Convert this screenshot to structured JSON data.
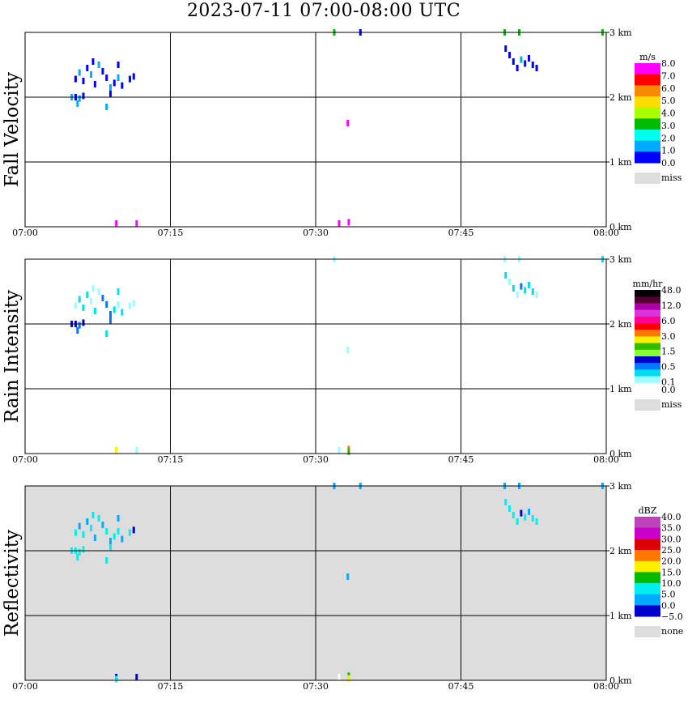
{
  "title": "2023-07-11   07:00-08:00 UTC",
  "chart_data": [
    {
      "type": "heatmap",
      "ylabel": "Fall Velocity",
      "x_ticks": [
        "07:00",
        "07:15",
        "07:30",
        "07:45",
        "08:00"
      ],
      "x_range": [
        0,
        60
      ],
      "x_unit": "minutes after 07:00 UTC",
      "y_ticks": [
        "0 km",
        "1 km",
        "2 km",
        "3 km"
      ],
      "y_range_km": [
        0,
        3.0
      ],
      "legend": {
        "unit": "m/s",
        "labels": [
          "8.0",
          "7.0",
          "6.0",
          "5.0",
          "4.0",
          "3.0",
          "2.0",
          "1.0",
          "0.0"
        ],
        "colors": [
          "#ff00ff",
          "#ff0000",
          "#ff8800",
          "#ffdd00",
          "#aaff00",
          "#00bb00",
          "#00ffee",
          "#00aaff",
          "#0000ff"
        ],
        "missing_label": "miss",
        "missing_color": "#dddddd"
      },
      "background": "#ffffff",
      "cells": [
        {
          "t": 5.2,
          "h": 2.28,
          "c": "#0000ff"
        },
        {
          "t": 5.6,
          "h": 2.38,
          "c": "#00aaff"
        },
        {
          "t": 6.0,
          "h": 2.25,
          "c": "#0000ff"
        },
        {
          "t": 6.4,
          "h": 2.45,
          "c": "#0000ff"
        },
        {
          "t": 6.8,
          "h": 2.35,
          "c": "#00aaff"
        },
        {
          "t": 7.2,
          "h": 2.2,
          "c": "#0000ff"
        },
        {
          "t": 7.6,
          "h": 2.5,
          "c": "#00aaff"
        },
        {
          "t": 8.0,
          "h": 2.4,
          "c": "#0000ff"
        },
        {
          "t": 8.4,
          "h": 2.3,
          "c": "#0000ff"
        },
        {
          "t": 8.8,
          "h": 2.15,
          "c": "#00aaff"
        },
        {
          "t": 9.2,
          "h": 2.22,
          "c": "#0000ff"
        },
        {
          "t": 9.6,
          "h": 2.3,
          "c": "#00aaff"
        },
        {
          "t": 10.0,
          "h": 2.18,
          "c": "#0000ff"
        },
        {
          "t": 10.8,
          "h": 2.28,
          "c": "#0000ff"
        },
        {
          "t": 11.2,
          "h": 2.32,
          "c": "#0000ff"
        },
        {
          "t": 4.8,
          "h": 2.0,
          "c": "#00aaff"
        },
        {
          "t": 5.2,
          "h": 2.0,
          "c": "#0000ff"
        },
        {
          "t": 5.6,
          "h": 1.98,
          "c": "#00aaff"
        },
        {
          "t": 6.0,
          "h": 2.02,
          "c": "#0000ff"
        },
        {
          "t": 5.4,
          "h": 1.9,
          "c": "#00aaff"
        },
        {
          "t": 8.4,
          "h": 1.85,
          "c": "#00aaff"
        },
        {
          "t": 8.8,
          "h": 2.05,
          "c": "#0000ff"
        },
        {
          "t": 9.6,
          "h": 2.5,
          "c": "#0000ff"
        },
        {
          "t": 7.0,
          "h": 2.55,
          "c": "#0000ff"
        },
        {
          "t": 9.4,
          "h": 0.05,
          "c": "#ff00ff"
        },
        {
          "t": 11.5,
          "h": 0.05,
          "c": "#ff00ff"
        },
        {
          "t": 31.9,
          "h": 3.0,
          "c": "#00bb00"
        },
        {
          "t": 34.6,
          "h": 3.0,
          "c": "#0000ff"
        },
        {
          "t": 33.3,
          "h": 1.6,
          "c": "#ff00ff"
        },
        {
          "t": 32.4,
          "h": 0.05,
          "c": "#ff00ff"
        },
        {
          "t": 33.4,
          "h": 0.07,
          "c": "#ff00ff"
        },
        {
          "t": 49.5,
          "h": 3.0,
          "c": "#00bb00"
        },
        {
          "t": 51.0,
          "h": 3.0,
          "c": "#00bb00"
        },
        {
          "t": 59.6,
          "h": 3.0,
          "c": "#00bb00"
        },
        {
          "t": 49.6,
          "h": 2.75,
          "c": "#0000ff"
        },
        {
          "t": 50.0,
          "h": 2.65,
          "c": "#0000ff"
        },
        {
          "t": 50.4,
          "h": 2.55,
          "c": "#0000ff"
        },
        {
          "t": 51.2,
          "h": 2.58,
          "c": "#00aaff"
        },
        {
          "t": 51.6,
          "h": 2.52,
          "c": "#0000ff"
        },
        {
          "t": 52.0,
          "h": 2.6,
          "c": "#0000ff"
        },
        {
          "t": 52.4,
          "h": 2.5,
          "c": "#0000ff"
        },
        {
          "t": 52.8,
          "h": 2.45,
          "c": "#0000ff"
        },
        {
          "t": 50.8,
          "h": 2.45,
          "c": "#0000ff"
        }
      ]
    },
    {
      "type": "heatmap",
      "ylabel": "Rain Intensity",
      "x_ticks": [
        "07:00",
        "07:15",
        "07:30",
        "07:45",
        "08:00"
      ],
      "x_range": [
        0,
        60
      ],
      "x_unit": "minutes after 07:00 UTC",
      "y_ticks": [
        "0 km",
        "1 km",
        "2 km",
        "3 km"
      ],
      "y_range_km": [
        0,
        3.0
      ],
      "legend": {
        "unit": "mm/hr",
        "labels": [
          "48.0",
          "",
          "12.0",
          "",
          "6.0",
          "",
          "3.0",
          "",
          "1.5",
          "",
          "0.5",
          "",
          "0.1",
          "0.0"
        ],
        "colors": [
          "#000000",
          "#550033",
          "#aa00aa",
          "#dd33dd",
          "#ff0099",
          "#ff0000",
          "#ff7700",
          "#ffee00",
          "#33bb00",
          "#88ff33",
          "#0000cc",
          "#0077ff",
          "#00ddee",
          "#99ffff",
          "#ffffff"
        ],
        "missing_label": "miss",
        "missing_color": "#dddddd"
      },
      "background": "#ffffff",
      "cells": [
        {
          "t": 5.2,
          "h": 2.28,
          "c": "#99ffff"
        },
        {
          "t": 5.6,
          "h": 2.38,
          "c": "#00ddee"
        },
        {
          "t": 6.0,
          "h": 2.25,
          "c": "#00ddee"
        },
        {
          "t": 6.4,
          "h": 2.45,
          "c": "#00ddee"
        },
        {
          "t": 6.8,
          "h": 2.35,
          "c": "#99ffff"
        },
        {
          "t": 7.2,
          "h": 2.2,
          "c": "#00ddee"
        },
        {
          "t": 7.6,
          "h": 2.5,
          "c": "#99ffff"
        },
        {
          "t": 8.0,
          "h": 2.4,
          "c": "#0077ff"
        },
        {
          "t": 8.4,
          "h": 2.3,
          "c": "#0077ff"
        },
        {
          "t": 8.8,
          "h": 2.15,
          "c": "#0077ff"
        },
        {
          "t": 9.2,
          "h": 2.22,
          "c": "#00ddee"
        },
        {
          "t": 9.6,
          "h": 2.3,
          "c": "#99ffff"
        },
        {
          "t": 10.0,
          "h": 2.18,
          "c": "#00ddee"
        },
        {
          "t": 10.8,
          "h": 2.28,
          "c": "#99ffff"
        },
        {
          "t": 11.2,
          "h": 2.32,
          "c": "#99ffff"
        },
        {
          "t": 4.8,
          "h": 2.0,
          "c": "#0000cc"
        },
        {
          "t": 5.2,
          "h": 2.0,
          "c": "#0000cc"
        },
        {
          "t": 5.6,
          "h": 1.98,
          "c": "#0077ff"
        },
        {
          "t": 6.0,
          "h": 2.02,
          "c": "#0000cc"
        },
        {
          "t": 5.4,
          "h": 1.9,
          "c": "#0077ff"
        },
        {
          "t": 8.4,
          "h": 1.85,
          "c": "#00ddee"
        },
        {
          "t": 8.8,
          "h": 2.05,
          "c": "#0077ff"
        },
        {
          "t": 9.6,
          "h": 2.5,
          "c": "#00ddee"
        },
        {
          "t": 7.0,
          "h": 2.55,
          "c": "#99ffff"
        },
        {
          "t": 9.4,
          "h": 0.05,
          "c": "#ffee00"
        },
        {
          "t": 11.5,
          "h": 0.05,
          "c": "#99ffff"
        },
        {
          "t": 31.9,
          "h": 3.0,
          "c": "#99ffff"
        },
        {
          "t": 33.3,
          "h": 1.6,
          "c": "#99ffff"
        },
        {
          "t": 32.4,
          "h": 0.05,
          "c": "#99ffff"
        },
        {
          "t": 33.4,
          "h": 0.07,
          "c": "#ff7700"
        },
        {
          "t": 33.4,
          "h": 0.03,
          "c": "#33bb00"
        },
        {
          "t": 49.5,
          "h": 3.0,
          "c": "#99ffff"
        },
        {
          "t": 51.0,
          "h": 3.0,
          "c": "#99ffff"
        },
        {
          "t": 59.6,
          "h": 3.0,
          "c": "#00ddee"
        },
        {
          "t": 49.6,
          "h": 2.75,
          "c": "#00ddee"
        },
        {
          "t": 50.0,
          "h": 2.65,
          "c": "#99ffff"
        },
        {
          "t": 50.4,
          "h": 2.55,
          "c": "#00ddee"
        },
        {
          "t": 51.2,
          "h": 2.58,
          "c": "#0077ff"
        },
        {
          "t": 51.6,
          "h": 2.52,
          "c": "#00ddee"
        },
        {
          "t": 52.0,
          "h": 2.6,
          "c": "#00ddee"
        },
        {
          "t": 52.4,
          "h": 2.5,
          "c": "#00ddee"
        },
        {
          "t": 52.8,
          "h": 2.45,
          "c": "#99ffff"
        },
        {
          "t": 50.8,
          "h": 2.45,
          "c": "#99ffff"
        }
      ]
    },
    {
      "type": "heatmap",
      "ylabel": "Reflectivity",
      "x_ticks": [
        "07:00",
        "07:15",
        "07:30",
        "07:45",
        "08:00"
      ],
      "x_range": [
        0,
        60
      ],
      "x_unit": "minutes after 07:00 UTC",
      "y_ticks": [
        "0 km",
        "1 km",
        "2 km",
        "3 km"
      ],
      "y_range_km": [
        0,
        3.0
      ],
      "legend": {
        "unit": "dBZ",
        "labels": [
          "40.0",
          "35.0",
          "30.0",
          "25.0",
          "20.0",
          "15.0",
          "10.0",
          "5.0",
          "0.0",
          "−5.0"
        ],
        "colors": [
          "#bb44bb",
          "#cc00cc",
          "#dd0000",
          "#ff7700",
          "#ffee00",
          "#00bb00",
          "#00eeee",
          "#00aaff",
          "#0000cc"
        ],
        "missing_label": "none",
        "missing_color": "#dddddd"
      },
      "background": "#dddddd",
      "cells": [
        {
          "t": 5.2,
          "h": 2.28,
          "c": "#00eeee"
        },
        {
          "t": 5.6,
          "h": 2.38,
          "c": "#00aaff"
        },
        {
          "t": 6.0,
          "h": 2.25,
          "c": "#00eeee"
        },
        {
          "t": 6.4,
          "h": 2.45,
          "c": "#00aaff"
        },
        {
          "t": 6.8,
          "h": 2.35,
          "c": "#00eeee"
        },
        {
          "t": 7.2,
          "h": 2.2,
          "c": "#00aaff"
        },
        {
          "t": 7.6,
          "h": 2.5,
          "c": "#00eeee"
        },
        {
          "t": 8.0,
          "h": 2.4,
          "c": "#00aaff"
        },
        {
          "t": 8.4,
          "h": 2.3,
          "c": "#00eeee"
        },
        {
          "t": 8.8,
          "h": 2.15,
          "c": "#00aaff"
        },
        {
          "t": 9.2,
          "h": 2.22,
          "c": "#00eeee"
        },
        {
          "t": 9.6,
          "h": 2.3,
          "c": "#00eeee"
        },
        {
          "t": 10.0,
          "h": 2.18,
          "c": "#00aaff"
        },
        {
          "t": 10.8,
          "h": 2.28,
          "c": "#00eeee"
        },
        {
          "t": 11.2,
          "h": 2.32,
          "c": "#0000cc"
        },
        {
          "t": 4.8,
          "h": 2.0,
          "c": "#00eeee"
        },
        {
          "t": 5.2,
          "h": 2.0,
          "c": "#00eeee"
        },
        {
          "t": 5.6,
          "h": 1.98,
          "c": "#00eeee"
        },
        {
          "t": 6.0,
          "h": 2.02,
          "c": "#00eeee"
        },
        {
          "t": 5.4,
          "h": 1.9,
          "c": "#00eeee"
        },
        {
          "t": 8.4,
          "h": 1.85,
          "c": "#00eeee"
        },
        {
          "t": 8.8,
          "h": 2.05,
          "c": "#00eeee"
        },
        {
          "t": 9.6,
          "h": 2.5,
          "c": "#00aaff"
        },
        {
          "t": 7.0,
          "h": 2.55,
          "c": "#00eeee"
        },
        {
          "t": 9.4,
          "h": 0.05,
          "c": "#0000cc"
        },
        {
          "t": 11.5,
          "h": 0.05,
          "c": "#0000cc"
        },
        {
          "t": 9.4,
          "h": 0.02,
          "c": "#00eeee"
        },
        {
          "t": 31.9,
          "h": 3.0,
          "c": "#00aaff"
        },
        {
          "t": 34.6,
          "h": 3.0,
          "c": "#00aaff"
        },
        {
          "t": 33.3,
          "h": 1.6,
          "c": "#00aaff"
        },
        {
          "t": 32.4,
          "h": 0.05,
          "c": "#ffffff"
        },
        {
          "t": 33.4,
          "h": 0.07,
          "c": "#00bb00"
        },
        {
          "t": 33.4,
          "h": 0.03,
          "c": "#ffee00"
        },
        {
          "t": 49.5,
          "h": 3.0,
          "c": "#00aaff"
        },
        {
          "t": 51.0,
          "h": 3.0,
          "c": "#00aaff"
        },
        {
          "t": 59.6,
          "h": 3.0,
          "c": "#00aaff"
        },
        {
          "t": 49.6,
          "h": 2.75,
          "c": "#00eeee"
        },
        {
          "t": 50.0,
          "h": 2.65,
          "c": "#00eeee"
        },
        {
          "t": 50.4,
          "h": 2.55,
          "c": "#00eeee"
        },
        {
          "t": 51.2,
          "h": 2.58,
          "c": "#0000cc"
        },
        {
          "t": 51.6,
          "h": 2.52,
          "c": "#00eeee"
        },
        {
          "t": 52.0,
          "h": 2.6,
          "c": "#00aaff"
        },
        {
          "t": 52.4,
          "h": 2.5,
          "c": "#00eeee"
        },
        {
          "t": 52.8,
          "h": 2.45,
          "c": "#00eeee"
        },
        {
          "t": 50.8,
          "h": 2.45,
          "c": "#00eeee"
        }
      ]
    }
  ]
}
